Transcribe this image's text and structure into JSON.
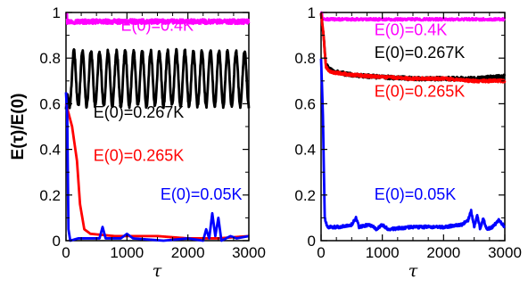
{
  "chart_data": [
    {
      "type": "line",
      "panel": "left",
      "xlabel": "τ",
      "ylabel": "E(τ)/E(0)",
      "xlim": [
        0,
        3000
      ],
      "ylim": [
        0,
        1
      ],
      "xticks": [
        "0",
        "1000",
        "2000",
        "3000"
      ],
      "yticks": [
        "0",
        "0.2",
        "0.4",
        "0.6",
        "0.8",
        "1"
      ],
      "grid": false,
      "series": [
        {
          "name": "E(0)=0.4K",
          "color": "#ff00ff",
          "mean": 0.96,
          "noise": 0.01,
          "initial": 1.0,
          "annotation": {
            "x": 900,
            "y": 0.92
          }
        },
        {
          "name": "E(0)=0.267K",
          "color": "#000000",
          "mean": 0.71,
          "amplitude": 0.12,
          "period": 140,
          "initial": 0.58,
          "peaks_approx": [
            0.84,
            0.87,
            0.85,
            0.86,
            0.85,
            0.87
          ],
          "troughs_approx": [
            0.59,
            0.57,
            0.58,
            0.56,
            0.48,
            0.58
          ],
          "annotation": {
            "x": 450,
            "y": 0.54
          }
        },
        {
          "name": "E(0)=0.265K",
          "color": "#ff0000",
          "points": [
            [
              0,
              0.6
            ],
            [
              100,
              0.5
            ],
            [
              180,
              0.35
            ],
            [
              230,
              0.16
            ],
            [
              300,
              0.05
            ],
            [
              400,
              0.03
            ],
            [
              800,
              0.02
            ],
            [
              1500,
              0.02
            ],
            [
              2000,
              0.01
            ],
            [
              2500,
              0.01
            ],
            [
              3000,
              0.02
            ]
          ],
          "annotation": {
            "x": 450,
            "y": 0.35
          }
        },
        {
          "name": "E(0)=0.05K",
          "color": "#0000ff",
          "points": [
            [
              0,
              0.65
            ],
            [
              20,
              0.55
            ],
            [
              40,
              0.05
            ],
            [
              70,
              0.0
            ],
            [
              200,
              0.01
            ],
            [
              300,
              0.01
            ],
            [
              550,
              0.01
            ],
            [
              600,
              0.06
            ],
            [
              650,
              0.01
            ],
            [
              900,
              0.01
            ],
            [
              1000,
              0.03
            ],
            [
              1100,
              0.01
            ],
            [
              1600,
              0.0
            ],
            [
              2000,
              0.01
            ],
            [
              2250,
              0.0
            ],
            [
              2300,
              0.05
            ],
            [
              2350,
              0.01
            ],
            [
              2400,
              0.12
            ],
            [
              2450,
              0.02
            ],
            [
              2500,
              0.1
            ],
            [
              2550,
              0.0
            ],
            [
              2700,
              0.02
            ],
            [
              2800,
              0.01
            ],
            [
              3000,
              0.02
            ]
          ],
          "annotation": {
            "x": 1550,
            "y": 0.18
          }
        }
      ]
    },
    {
      "type": "line",
      "panel": "right",
      "xlabel": "τ",
      "ylabel": "",
      "xlim": [
        0,
        3000
      ],
      "ylim": [
        0,
        1
      ],
      "xticks": [
        "0",
        "1000",
        "2000",
        "3000"
      ],
      "yticks": [
        "0",
        "0.2",
        "0.4",
        "0.6",
        "0.8",
        "1"
      ],
      "grid": false,
      "series": [
        {
          "name": "E(0)=0.4K",
          "color": "#ff00ff",
          "mean": 0.97,
          "noise": 0.005,
          "initial": 1.0,
          "annotation": {
            "x": 870,
            "y": 0.9
          }
        },
        {
          "name": "E(0)=0.267K",
          "color": "#000000",
          "points": [
            [
              0,
              1.0
            ],
            [
              40,
              0.9
            ],
            [
              80,
              0.77
            ],
            [
              150,
              0.75
            ],
            [
              400,
              0.73
            ],
            [
              800,
              0.72
            ],
            [
              1500,
              0.71
            ],
            [
              2000,
              0.71
            ],
            [
              2500,
              0.71
            ],
            [
              3000,
              0.72
            ]
          ],
          "noise": 0.008,
          "annotation": {
            "x": 870,
            "y": 0.8
          }
        },
        {
          "name": "E(0)=0.265K",
          "color": "#ff0000",
          "points": [
            [
              0,
              1.0
            ],
            [
              40,
              0.9
            ],
            [
              80,
              0.76
            ],
            [
              150,
              0.74
            ],
            [
              400,
              0.73
            ],
            [
              800,
              0.72
            ],
            [
              1500,
              0.71
            ],
            [
              2000,
              0.71
            ],
            [
              2500,
              0.7
            ],
            [
              3000,
              0.7
            ]
          ],
          "noise": 0.006,
          "annotation": {
            "x": 870,
            "y": 0.63
          }
        },
        {
          "name": "E(0)=0.05K",
          "color": "#0000ff",
          "points": [
            [
              0,
              0.8
            ],
            [
              30,
              0.55
            ],
            [
              60,
              0.1
            ],
            [
              100,
              0.06
            ],
            [
              300,
              0.06
            ],
            [
              500,
              0.07
            ],
            [
              570,
              0.1
            ],
            [
              620,
              0.06
            ],
            [
              800,
              0.07
            ],
            [
              900,
              0.05
            ],
            [
              1000,
              0.07
            ],
            [
              1100,
              0.05
            ],
            [
              1500,
              0.06
            ],
            [
              2000,
              0.06
            ],
            [
              2300,
              0.07
            ],
            [
              2400,
              0.09
            ],
            [
              2450,
              0.13
            ],
            [
              2500,
              0.06
            ],
            [
              2550,
              0.11
            ],
            [
              2600,
              0.05
            ],
            [
              2650,
              0.1
            ],
            [
              2700,
              0.05
            ],
            [
              2800,
              0.06
            ],
            [
              2900,
              0.09
            ],
            [
              3000,
              0.06
            ]
          ],
          "noise": 0.006,
          "annotation": {
            "x": 870,
            "y": 0.18
          }
        }
      ]
    }
  ]
}
